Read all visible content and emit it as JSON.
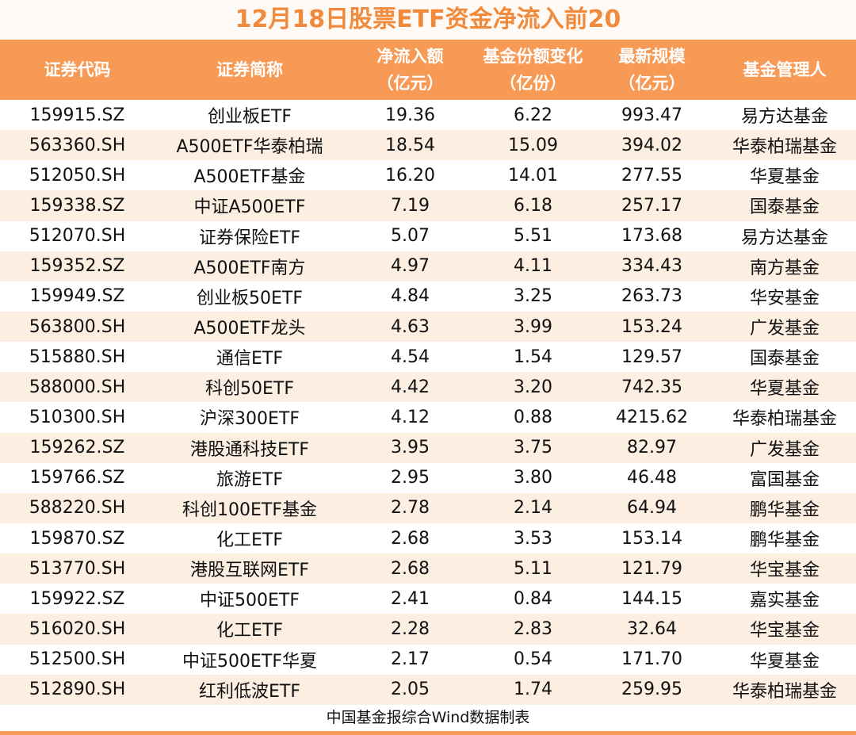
{
  "title": "12月18日股票ETF资金净流入前20",
  "table": {
    "header": [
      [
        "证券代码"
      ],
      [
        "证券简称"
      ],
      [
        "净流入额",
        "（亿元）"
      ],
      [
        "基金份额变化",
        "（亿份）"
      ],
      [
        "最新规模",
        "（亿元）"
      ],
      [
        "基金管理人"
      ]
    ],
    "rows": [
      [
        "159915.SZ",
        "创业板ETF",
        "19.36",
        "6.22",
        "993.47",
        "易方达基金"
      ],
      [
        "563360.SH",
        "A500ETF华泰柏瑞",
        "18.54",
        "15.09",
        "394.02",
        "华泰柏瑞基金"
      ],
      [
        "512050.SH",
        "A500ETF基金",
        "16.20",
        "14.01",
        "277.55",
        "华夏基金"
      ],
      [
        "159338.SZ",
        "中证A500ETF",
        "7.19",
        "6.18",
        "257.17",
        "国泰基金"
      ],
      [
        "512070.SH",
        "证券保险ETF",
        "5.07",
        "5.51",
        "173.68",
        "易方达基金"
      ],
      [
        "159352.SZ",
        "A500ETF南方",
        "4.97",
        "4.11",
        "334.43",
        "南方基金"
      ],
      [
        "159949.SZ",
        "创业板50ETF",
        "4.84",
        "3.25",
        "263.73",
        "华安基金"
      ],
      [
        "563800.SH",
        "A500ETF龙头",
        "4.63",
        "3.99",
        "153.24",
        "广发基金"
      ],
      [
        "515880.SH",
        "通信ETF",
        "4.54",
        "1.54",
        "129.57",
        "国泰基金"
      ],
      [
        "588000.SH",
        "科创50ETF",
        "4.42",
        "3.20",
        "742.35",
        "华夏基金"
      ],
      [
        "510300.SH",
        "沪深300ETF",
        "4.12",
        "0.88",
        "4215.62",
        "华泰柏瑞基金"
      ],
      [
        "159262.SZ",
        "港股通科技ETF",
        "3.95",
        "3.75",
        "82.97",
        "广发基金"
      ],
      [
        "159766.SZ",
        "旅游ETF",
        "2.95",
        "3.80",
        "46.48",
        "富国基金"
      ],
      [
        "588220.SH",
        "科创100ETF基金",
        "2.78",
        "2.14",
        "64.94",
        "鹏华基金"
      ],
      [
        "159870.SZ",
        "化工ETF",
        "2.68",
        "3.53",
        "153.14",
        "鹏华基金"
      ],
      [
        "513770.SH",
        "港股互联网ETF",
        "2.68",
        "5.11",
        "121.79",
        "华宝基金"
      ],
      [
        "159922.SZ",
        "中证500ETF",
        "2.41",
        "0.84",
        "144.15",
        "嘉实基金"
      ],
      [
        "516020.SH",
        "化工ETF",
        "2.28",
        "2.83",
        "32.64",
        "华宝基金"
      ],
      [
        "512500.SH",
        "中证500ETF华夏",
        "2.17",
        "0.54",
        "171.70",
        "华夏基金"
      ],
      [
        "512890.SH",
        "红利低波ETF",
        "2.05",
        "1.74",
        "259.95",
        "华泰柏瑞基金"
      ]
    ]
  },
  "footer": "中国基金报综合Wind数据制表"
}
